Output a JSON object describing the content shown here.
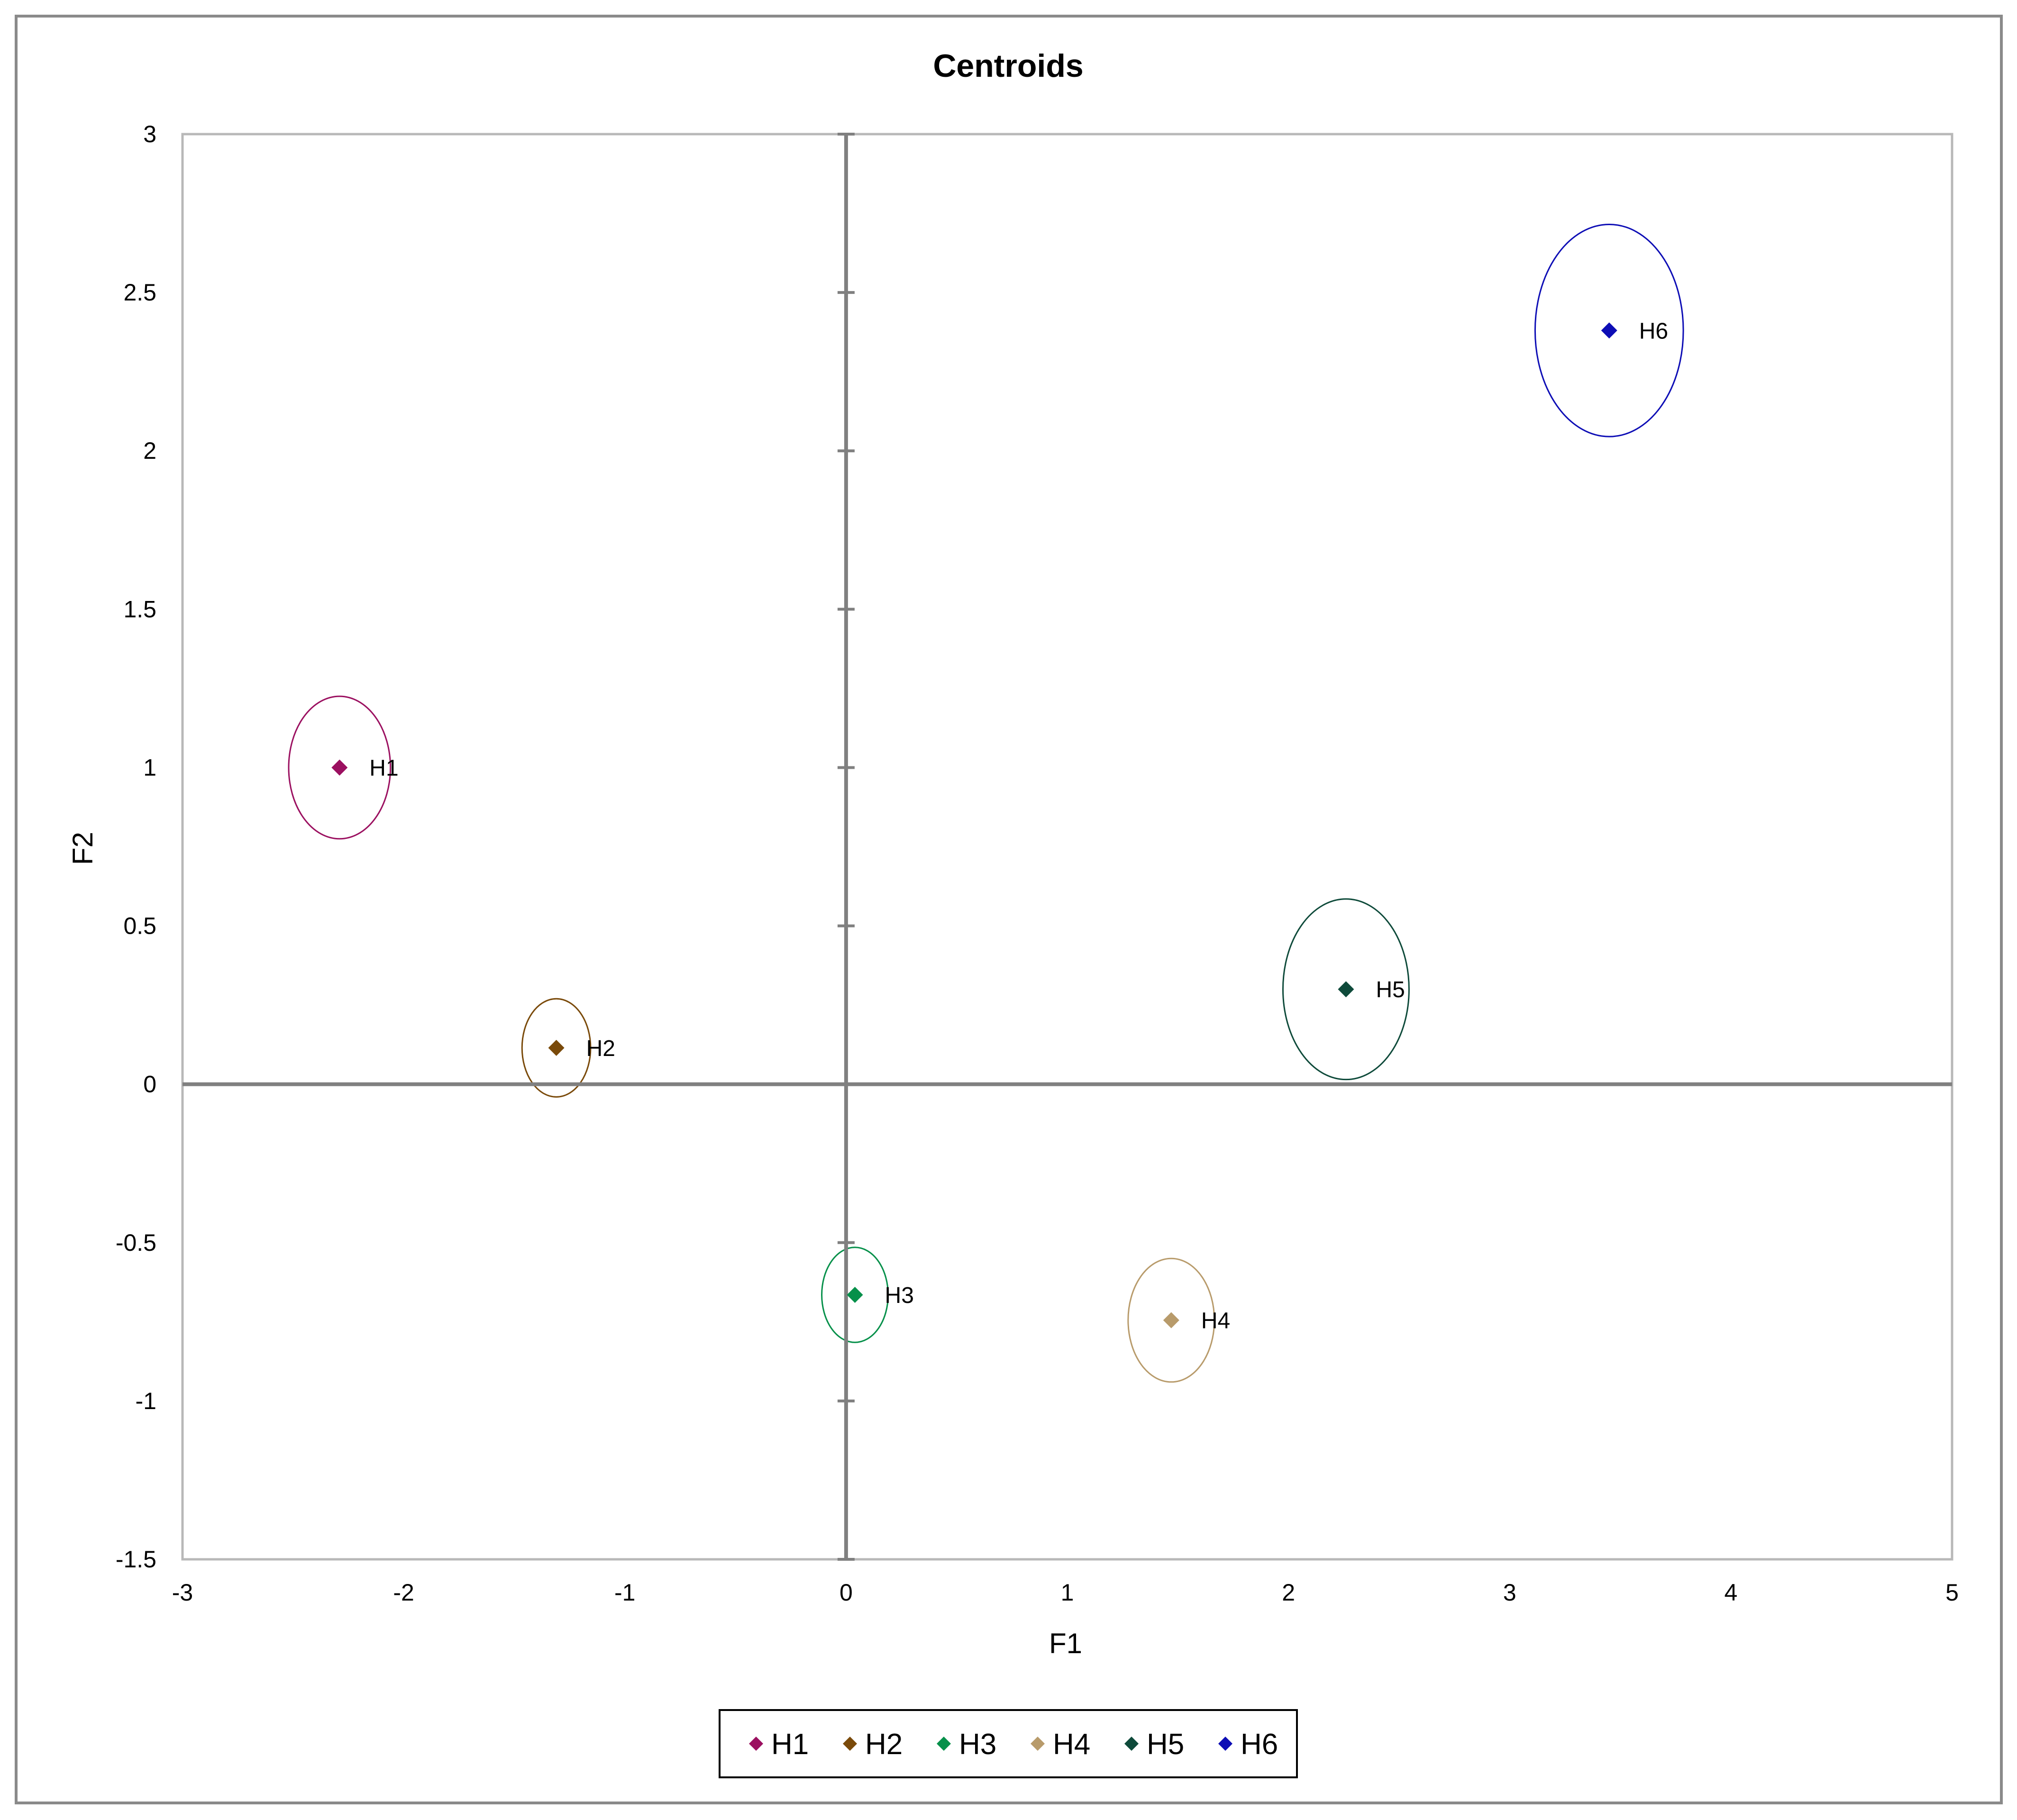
{
  "chart_data": {
    "type": "scatter",
    "title": "Centroids",
    "xlabel": "F1",
    "ylabel": "F2",
    "xlim": [
      -3,
      5
    ],
    "ylim": [
      -1.5,
      3
    ],
    "x_ticks": [
      "-3",
      "-2",
      "-1",
      "0",
      "1",
      "2",
      "3",
      "4",
      "5"
    ],
    "y_ticks": [
      "3",
      "2.5",
      "2",
      "1.5",
      "1",
      "0.5",
      "0",
      "-0.5",
      "-1",
      "-1.5"
    ],
    "x_tick_values": [
      -3,
      -2,
      -1,
      0,
      1,
      2,
      3,
      4,
      5
    ],
    "y_tick_values": [
      3,
      2.5,
      2,
      1.5,
      1,
      0.5,
      0,
      -0.5,
      -1,
      -1.5
    ],
    "grid": false,
    "legend_position": "bottom-center",
    "marker": "diamond",
    "confidence_ellipses": true,
    "series": [
      {
        "name": "H1",
        "color": "#9B1060",
        "x": -2.29,
        "y": 1.0,
        "rx": 0.23,
        "ry": 0.225
      },
      {
        "name": "H2",
        "color": "#7A4A0A",
        "x": -1.31,
        "y": 0.115,
        "rx": 0.155,
        "ry": 0.155
      },
      {
        "name": "H3",
        "color": "#06904A",
        "x": 0.04,
        "y": -0.665,
        "rx": 0.15,
        "ry": 0.15
      },
      {
        "name": "H4",
        "color": "#B89B6B",
        "x": 1.47,
        "y": -0.745,
        "rx": 0.195,
        "ry": 0.195
      },
      {
        "name": "H5",
        "color": "#0E4A3A",
        "x": 2.26,
        "y": 0.3,
        "rx": 0.285,
        "ry": 0.285
      },
      {
        "name": "H6",
        "color": "#0D0DB5",
        "x": 3.45,
        "y": 2.38,
        "rx": 0.335,
        "ry": 0.335
      }
    ]
  }
}
